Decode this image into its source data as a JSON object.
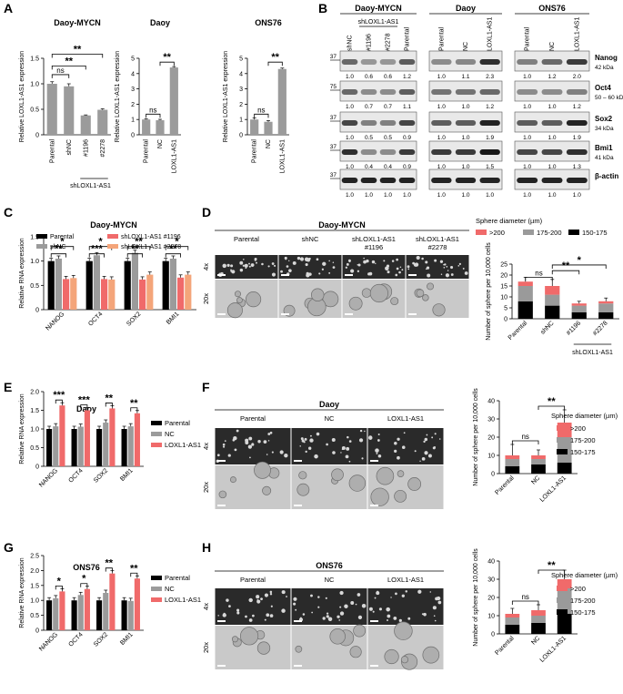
{
  "panels": {
    "A": "A",
    "B": "B",
    "C": "C",
    "D": "D",
    "E": "E",
    "F": "F",
    "G": "G",
    "H": "H"
  },
  "colors": {
    "gray": "#9b9b9b",
    "black": "#000000",
    "red": "#f06a6a",
    "salmon": "#f4a57a",
    "mid": "#9a9a9a"
  },
  "chart_data": [
    {
      "panel": "A",
      "type": "bar",
      "title": "Daoy-MYCN",
      "ylabel": "Relative LOXL1-AS1 expression",
      "ylim": [
        0,
        1.5
      ],
      "yticks": [
        "0",
        "0.5",
        "1.0",
        "1.5"
      ],
      "categories": [
        "Parental",
        "shNC",
        "#1196",
        "#2278"
      ],
      "values": [
        1.0,
        0.95,
        0.38,
        0.49
      ],
      "errors": [
        0.04,
        0.05,
        0.01,
        0.02
      ],
      "group_label": "shLOXL1-AS1",
      "sig": [
        {
          "label": "ns"
        },
        {
          "label": "**"
        },
        {
          "label": "**"
        }
      ]
    },
    {
      "panel": "A",
      "type": "bar",
      "title": "Daoy",
      "ylabel": "Relative LOXL1-AS1 expression",
      "ylim": [
        0,
        5
      ],
      "yticks": [
        "0",
        "1",
        "2",
        "3",
        "4",
        "5"
      ],
      "categories": [
        "Parental",
        "NC",
        "LOXL1-AS1"
      ],
      "values": [
        1.0,
        0.95,
        4.4
      ],
      "errors": [
        0.04,
        0.06,
        0.06
      ],
      "sig": [
        {
          "label": "ns"
        },
        {
          "label": "**"
        }
      ]
    },
    {
      "panel": "A",
      "type": "bar",
      "title": "ONS76",
      "ylabel": "Relative LOXL1-AS1 expression",
      "ylim": [
        0,
        5
      ],
      "yticks": [
        "0",
        "1",
        "2",
        "3",
        "4",
        "5"
      ],
      "categories": [
        "Parental",
        "NC",
        "LOXL1-AS1"
      ],
      "values": [
        1.0,
        0.85,
        4.3
      ],
      "errors": [
        0.1,
        0.08,
        0.06
      ],
      "sig": [
        {
          "label": "ns"
        },
        {
          "label": "**"
        }
      ]
    },
    {
      "panel": "C",
      "type": "bar",
      "title": "Daoy-MYCN",
      "ylabel": "Relative RNA expression",
      "ylim": [
        0,
        1.5
      ],
      "yticks": [
        "0",
        "0.5",
        "1.0",
        "1.5"
      ],
      "categories": [
        "NANOG",
        "OCT4",
        "SOX2",
        "BMI1"
      ],
      "series": [
        {
          "name": "Parental",
          "values": [
            1.0,
            1.0,
            1.0,
            1.0
          ]
        },
        {
          "name": "shNC",
          "values": [
            1.05,
            1.12,
            1.17,
            1.05
          ]
        },
        {
          "name": "shLOXL1-AS1 #1196",
          "values": [
            0.63,
            0.63,
            0.62,
            0.66
          ]
        },
        {
          "name": "shLOXL1-AS1 #2278",
          "values": [
            0.65,
            0.62,
            0.72,
            0.72
          ]
        }
      ],
      "sig": [
        [
          "*",
          "**"
        ],
        [
          "*",
          "***"
        ],
        [
          "**",
          "**"
        ],
        [
          "*",
          "**"
        ]
      ]
    },
    {
      "panel": "D",
      "type": "bar",
      "ylabel": "Number of sphere per 10,000 cells",
      "ylim": [
        0,
        25
      ],
      "yticks": [
        "0",
        "5",
        "10",
        "15",
        "20",
        "25"
      ],
      "categories": [
        "Parental",
        "shNC",
        "#1196",
        "#2278"
      ],
      "group_label": "shLOXL1-AS1",
      "legend_title": "Sphere diameter (µm)",
      "series": [
        {
          "name": "150-175",
          "values": [
            8,
            6,
            3,
            3
          ]
        },
        {
          "name": "175-200",
          "values": [
            7,
            5,
            3,
            4
          ]
        },
        {
          "name": ">200",
          "values": [
            2,
            4,
            1,
            1
          ]
        }
      ],
      "errors": [
        2,
        3,
        1,
        1.5
      ],
      "sig": [
        {
          "label": "ns"
        },
        {
          "label": "**"
        },
        {
          "label": "*"
        }
      ]
    },
    {
      "panel": "E",
      "type": "bar",
      "title": "Daoy",
      "ylabel": "Relative RNA expression",
      "ylim": [
        0,
        2.0
      ],
      "yticks": [
        "0",
        "0.5",
        "1.0",
        "1.5",
        "2.0"
      ],
      "categories": [
        "NANOG",
        "OCT4",
        "SOX2",
        "BMI1"
      ],
      "series": [
        {
          "name": "Parental",
          "values": [
            1.0,
            1.0,
            1.0,
            1.0
          ]
        },
        {
          "name": "NC",
          "values": [
            1.07,
            1.06,
            1.17,
            1.07
          ]
        },
        {
          "name": "LOXL1-AS1",
          "values": [
            1.63,
            1.5,
            1.55,
            1.42
          ]
        }
      ],
      "sig": [
        "***",
        "***",
        "**",
        "**"
      ]
    },
    {
      "panel": "F",
      "type": "bar",
      "ylabel": "Number of sphere per 10,000 cells",
      "ylim": [
        0,
        40
      ],
      "yticks": [
        "0",
        "10",
        "20",
        "30",
        "40"
      ],
      "categories": [
        "Parental",
        "NC",
        "LOXL1-AS1"
      ],
      "legend_title": "Sphere diameter (µm)",
      "series": [
        {
          "name": "150-175",
          "values": [
            4,
            5,
            6
          ]
        },
        {
          "name": "175-200",
          "values": [
            4,
            3,
            14
          ]
        },
        {
          "name": ">200",
          "values": [
            2,
            2,
            8
          ]
        }
      ],
      "errors": [
        6,
        3,
        7
      ],
      "sig": [
        {
          "label": "ns"
        },
        {
          "label": "**"
        }
      ]
    },
    {
      "panel": "G",
      "type": "bar",
      "title": "ONS76",
      "ylabel": "Relative RNA expression",
      "ylim": [
        0,
        2.5
      ],
      "yticks": [
        "0",
        "0.5",
        "1.0",
        "1.5",
        "2.0",
        "2.5"
      ],
      "categories": [
        "NANOG",
        "OCT4",
        "SOX2",
        "BMI1"
      ],
      "series": [
        {
          "name": "Parental",
          "values": [
            1.0,
            1.0,
            1.0,
            1.0
          ]
        },
        {
          "name": "NC",
          "values": [
            1.07,
            1.18,
            1.25,
            0.98
          ]
        },
        {
          "name": "LOXL1-AS1",
          "values": [
            1.3,
            1.38,
            1.9,
            1.73
          ]
        }
      ],
      "sig": [
        "*",
        "*",
        "**",
        "**"
      ]
    },
    {
      "panel": "H",
      "type": "bar",
      "ylabel": "Number of sphere per 10,000 cells",
      "ylim": [
        0,
        40
      ],
      "yticks": [
        "0",
        "10",
        "20",
        "30",
        "40"
      ],
      "categories": [
        "Parental",
        "NC",
        "LOXL1-AS1"
      ],
      "legend_title": "Sphere diameter (µm)",
      "series": [
        {
          "name": "150-175",
          "values": [
            5,
            6,
            11
          ]
        },
        {
          "name": "175-200",
          "values": [
            4,
            4,
            14
          ]
        },
        {
          "name": ">200",
          "values": [
            2,
            3,
            5
          ]
        }
      ],
      "errors": [
        3,
        3,
        5
      ],
      "sig": [
        {
          "label": "ns"
        },
        {
          "label": "**"
        }
      ]
    }
  ],
  "blot": {
    "groups": [
      {
        "title": "Daoy-MYCN",
        "lanes": [
          "shNC",
          "#1196",
          "#2278",
          "Parental"
        ],
        "sub": "shLOXL1-AS1"
      },
      {
        "title": "Daoy",
        "lanes": [
          "Parental",
          "NC",
          "LOXL1-AS1"
        ]
      },
      {
        "title": "ONS76",
        "lanes": [
          "Parental",
          "NC",
          "LOXL1-AS1"
        ]
      }
    ],
    "rows": [
      {
        "name": "Nanog",
        "kda": "42 kDa",
        "marker": "37",
        "values": [
          [
            "1.0",
            "0.6",
            "0.6",
            "1.2"
          ],
          [
            "1.0",
            "1.1",
            "2.3"
          ],
          [
            "1.0",
            "1.2",
            "2.0"
          ]
        ],
        "i": [
          [
            0.55,
            0.35,
            0.35,
            0.6
          ],
          [
            0.4,
            0.42,
            0.8
          ],
          [
            0.45,
            0.55,
            0.75
          ]
        ]
      },
      {
        "name": "Oct4",
        "kda": "50 – 60 kDa",
        "marker": "75",
        "values": [
          [
            "1.0",
            "0.7",
            "0.7",
            "1.1"
          ],
          [
            "1.0",
            "1.0",
            "1.2"
          ],
          [
            "1.0",
            "1.0",
            "1.2"
          ]
        ],
        "i": [
          [
            0.55,
            0.4,
            0.4,
            0.6
          ],
          [
            0.5,
            0.5,
            0.55
          ],
          [
            0.4,
            0.4,
            0.45
          ]
        ]
      },
      {
        "name": "Sox2",
        "kda": "34 kDa",
        "marker": "37",
        "values": [
          [
            "1.0",
            "0.5",
            "0.5",
            "0.9"
          ],
          [
            "1.0",
            "1.0",
            "1.9"
          ],
          [
            "1.0",
            "1.0",
            "1.9"
          ]
        ],
        "i": [
          [
            0.7,
            0.45,
            0.45,
            0.7
          ],
          [
            0.6,
            0.6,
            0.85
          ],
          [
            0.6,
            0.6,
            0.85
          ]
        ]
      },
      {
        "name": "Bmi1",
        "kda": "41 kDa",
        "marker": "37",
        "values": [
          [
            "1.0",
            "0.4",
            "0.4",
            "0.9"
          ],
          [
            "1.0",
            "1.0",
            "1.5"
          ],
          [
            "1.0",
            "1.0",
            "1.3"
          ]
        ],
        "i": [
          [
            0.8,
            0.4,
            0.4,
            0.75
          ],
          [
            0.75,
            0.75,
            0.9
          ],
          [
            0.7,
            0.7,
            0.8
          ]
        ]
      },
      {
        "name": "β-actin",
        "kda": "",
        "marker": "37",
        "values": [
          [
            "1.0",
            "1.0",
            "1.0",
            "1.0"
          ],
          [
            "1.0",
            "1.0",
            "1.0"
          ],
          [
            "1.0",
            "1.0",
            "1.0"
          ]
        ],
        "i": [
          [
            0.85,
            0.85,
            0.85,
            0.85
          ],
          [
            0.85,
            0.85,
            0.85
          ],
          [
            0.85,
            0.85,
            0.85
          ]
        ]
      }
    ]
  },
  "micro": {
    "D": {
      "title": "Daoy-MYCN",
      "cols": [
        "Parental",
        "shNC",
        "shLOXL1-AS1\n#1196",
        "shLOXL1-AS1\n#2278"
      ],
      "rows": [
        "4x",
        "20x"
      ]
    },
    "F": {
      "title": "Daoy",
      "cols": [
        "Parental",
        "NC",
        "LOXL1-AS1"
      ],
      "rows": [
        "4x",
        "20x"
      ]
    },
    "H": {
      "title": "ONS76",
      "cols": [
        "Parental",
        "NC",
        "LOXL1-AS1"
      ],
      "rows": [
        "4x",
        "20x"
      ]
    }
  }
}
